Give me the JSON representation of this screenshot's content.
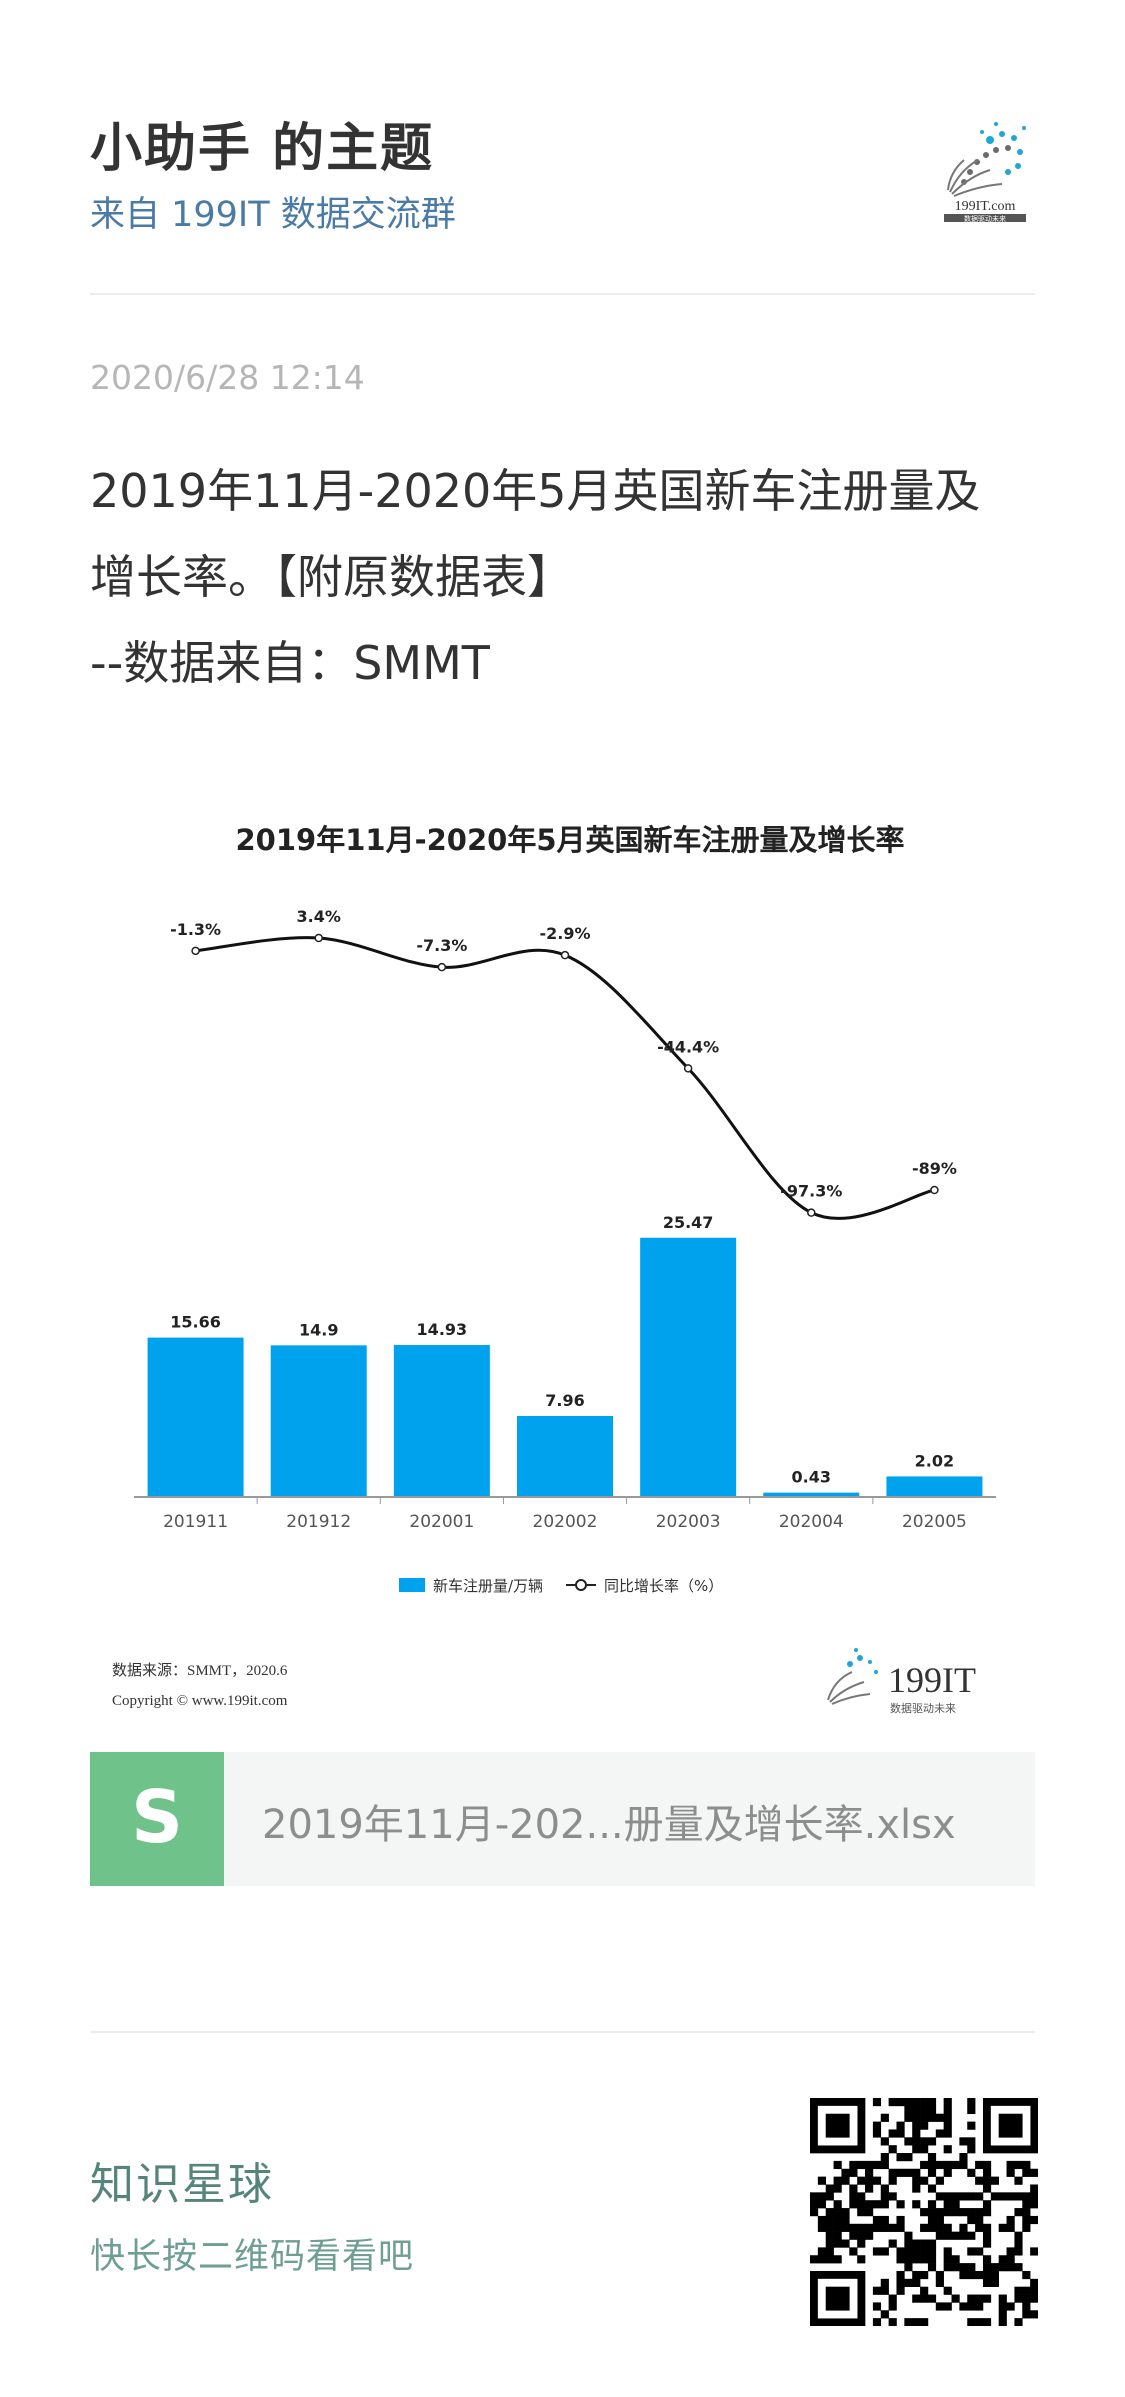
{
  "header": {
    "author": "小助手 的主题",
    "group": "来自 199IT 数据交流群",
    "logo_text": "199IT.com",
    "logo_sub": "数据驱动未来"
  },
  "post": {
    "date": "2020/6/28 12:14",
    "lines": [
      "2019年11月-2020年5月英国新车注册量及",
      "增长率。【附原数据表】",
      "--数据来自：SMMT"
    ]
  },
  "chart_data": {
    "type": "bar",
    "title": "2019年11月-2020年5月英国新车注册量及增长率",
    "categories": [
      "201911",
      "201912",
      "202001",
      "202002",
      "202003",
      "202004",
      "202005"
    ],
    "series": [
      {
        "name": "新车注册量/万辆",
        "type": "bar",
        "values": [
          15.66,
          14.9,
          14.93,
          7.96,
          25.47,
          0.43,
          2.02
        ],
        "labels": [
          "15.66",
          "14.9",
          "14.93",
          "7.96",
          "25.47",
          "0.43",
          "2.02"
        ]
      },
      {
        "name": "同比增长率（%）",
        "type": "line",
        "values": [
          -1.3,
          3.4,
          -7.3,
          -2.9,
          -44.4,
          -97.3,
          -89
        ],
        "labels": [
          "-1.3%",
          "3.4%",
          "-7.3%",
          "-2.9%",
          "-44.4%",
          "-97.3%",
          "-89%"
        ]
      }
    ],
    "ylim_bar": [
      0,
      28
    ],
    "ylim_line": [
      -100,
      10
    ],
    "legend": "bottom",
    "source_line": "数据来源：SMMT，2020.6",
    "copyright_line": "Copyright ©     www.199it.com",
    "brand": "199IT",
    "brand_sub": "数据驱动未来",
    "colors": {
      "bar": "#00a2ed",
      "line": "#111111",
      "text": "#222222",
      "axis": "#999999"
    }
  },
  "attachment": {
    "icon_letter": "S",
    "file_name": "2019年11月-202...册量及增长率.xlsx",
    "icon_color": "#6ec28a"
  },
  "footer": {
    "title": "知识星球",
    "subtitle": "快长按二维码看看吧"
  }
}
